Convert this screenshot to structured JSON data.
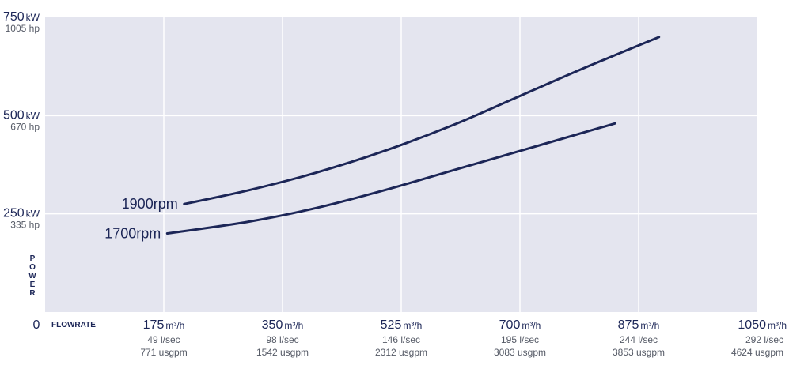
{
  "chart_data": {
    "type": "line",
    "title": "",
    "xlabel": "FLOWRATE",
    "ylabel": "POWER",
    "origin_label": "0",
    "xlim": [
      0,
      1050
    ],
    "ylim": [
      0,
      750
    ],
    "grid": true,
    "background_color": "#e4e5ef",
    "line_color": "#1c2657",
    "x_ticks": [
      {
        "value": 175,
        "main": "175",
        "unit": "m³/h",
        "sub1": "49 l/sec",
        "sub2": "771 usgpm"
      },
      {
        "value": 350,
        "main": "350",
        "unit": "m³/h",
        "sub1": "98 l/sec",
        "sub2": "1542 usgpm"
      },
      {
        "value": 525,
        "main": "525",
        "unit": "m³/h",
        "sub1": "146 l/sec",
        "sub2": "2312 usgpm"
      },
      {
        "value": 700,
        "main": "700",
        "unit": "m³/h",
        "sub1": "195 l/sec",
        "sub2": "3083 usgpm"
      },
      {
        "value": 875,
        "main": "875",
        "unit": "m³/h",
        "sub1": "244 l/sec",
        "sub2": "3853 usgpm"
      },
      {
        "value": 1050,
        "main": "1050",
        "unit": "m³/h",
        "sub1": "292 l/sec",
        "sub2": "4624 usgpm"
      }
    ],
    "y_ticks": [
      {
        "value": 250,
        "main": "250",
        "unit": "kW",
        "sub": "335 hp"
      },
      {
        "value": 500,
        "main": "500",
        "unit": "kW",
        "sub": "670 hp"
      },
      {
        "value": 750,
        "main": "750",
        "unit": "kW",
        "sub": "1005 hp"
      }
    ],
    "series": [
      {
        "name": "1900rpm",
        "x": [
          205,
          300,
          400,
          500,
          600,
          700,
          800,
          905
        ],
        "y": [
          275,
          310,
          355,
          410,
          475,
          550,
          625,
          700
        ]
      },
      {
        "name": "1700rpm",
        "x": [
          180,
          300,
          400,
          500,
          600,
          700,
          800,
          840
        ],
        "y": [
          200,
          230,
          265,
          310,
          360,
          410,
          460,
          480
        ]
      }
    ]
  }
}
